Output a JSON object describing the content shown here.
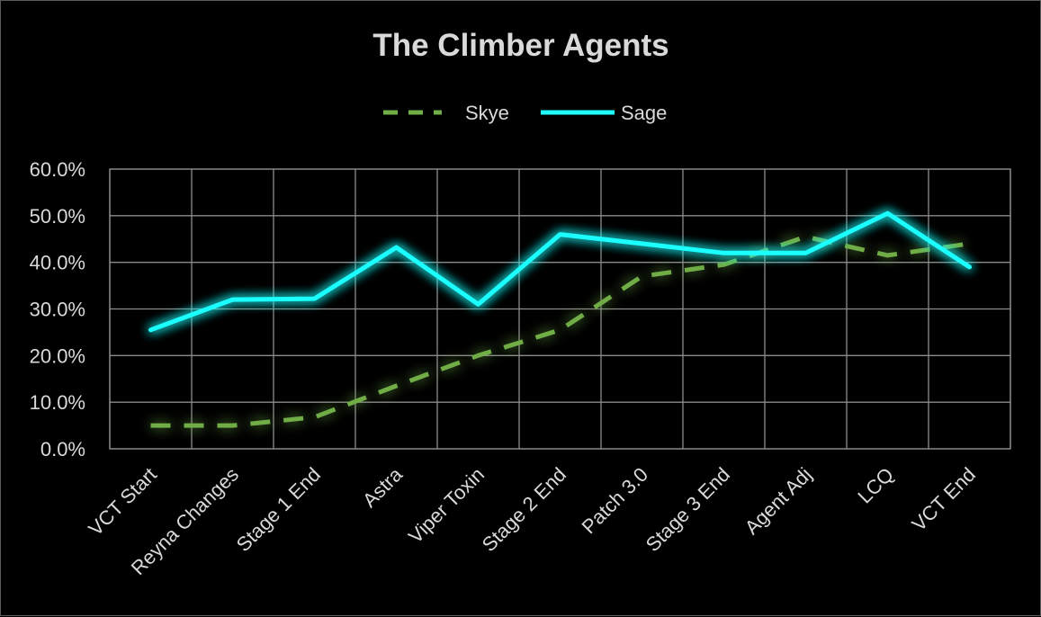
{
  "chart_data": {
    "type": "line",
    "title": "The Climber Agents",
    "xlabel": "",
    "ylabel": "",
    "categories": [
      "VCT Start",
      "Reyna Changes",
      "Stage 1 End",
      "Astra",
      "Viper Toxin",
      "Stage 2 End",
      "Patch 3.0",
      "Stage 3 End",
      "Agent Adj",
      "LCQ",
      "VCT End"
    ],
    "y_ticks": [
      "0.0%",
      "10.0%",
      "20.0%",
      "30.0%",
      "40.0%",
      "50.0%",
      "60.0%"
    ],
    "ylim": [
      0,
      60
    ],
    "grid": true,
    "legend_position": "top",
    "series": [
      {
        "name": "Skye",
        "color": "#70ad47",
        "line_style": "dashed",
        "values": [
          5.0,
          5.0,
          6.8,
          13.5,
          20.0,
          25.5,
          37.0,
          39.5,
          45.5,
          41.5,
          44.0
        ]
      },
      {
        "name": "Sage",
        "color": "#1fffff",
        "line_style": "solid",
        "values": [
          25.5,
          32.0,
          32.2,
          43.2,
          31.0,
          46.0,
          44.0,
          42.0,
          42.0,
          50.5,
          39.0
        ]
      }
    ]
  }
}
